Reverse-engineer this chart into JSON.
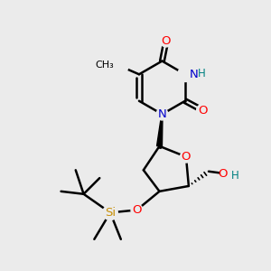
{
  "background_color": "#ebebeb",
  "atom_colors": {
    "N": "#0000cc",
    "O": "#ff0000",
    "C": "#000000",
    "H": "#008080",
    "Si": "#c8900a"
  },
  "bond_color": "#000000",
  "bond_width": 1.8,
  "figsize": [
    3.0,
    3.0
  ],
  "dpi": 100,
  "xlim": [
    0,
    10
  ],
  "ylim": [
    0,
    10
  ]
}
